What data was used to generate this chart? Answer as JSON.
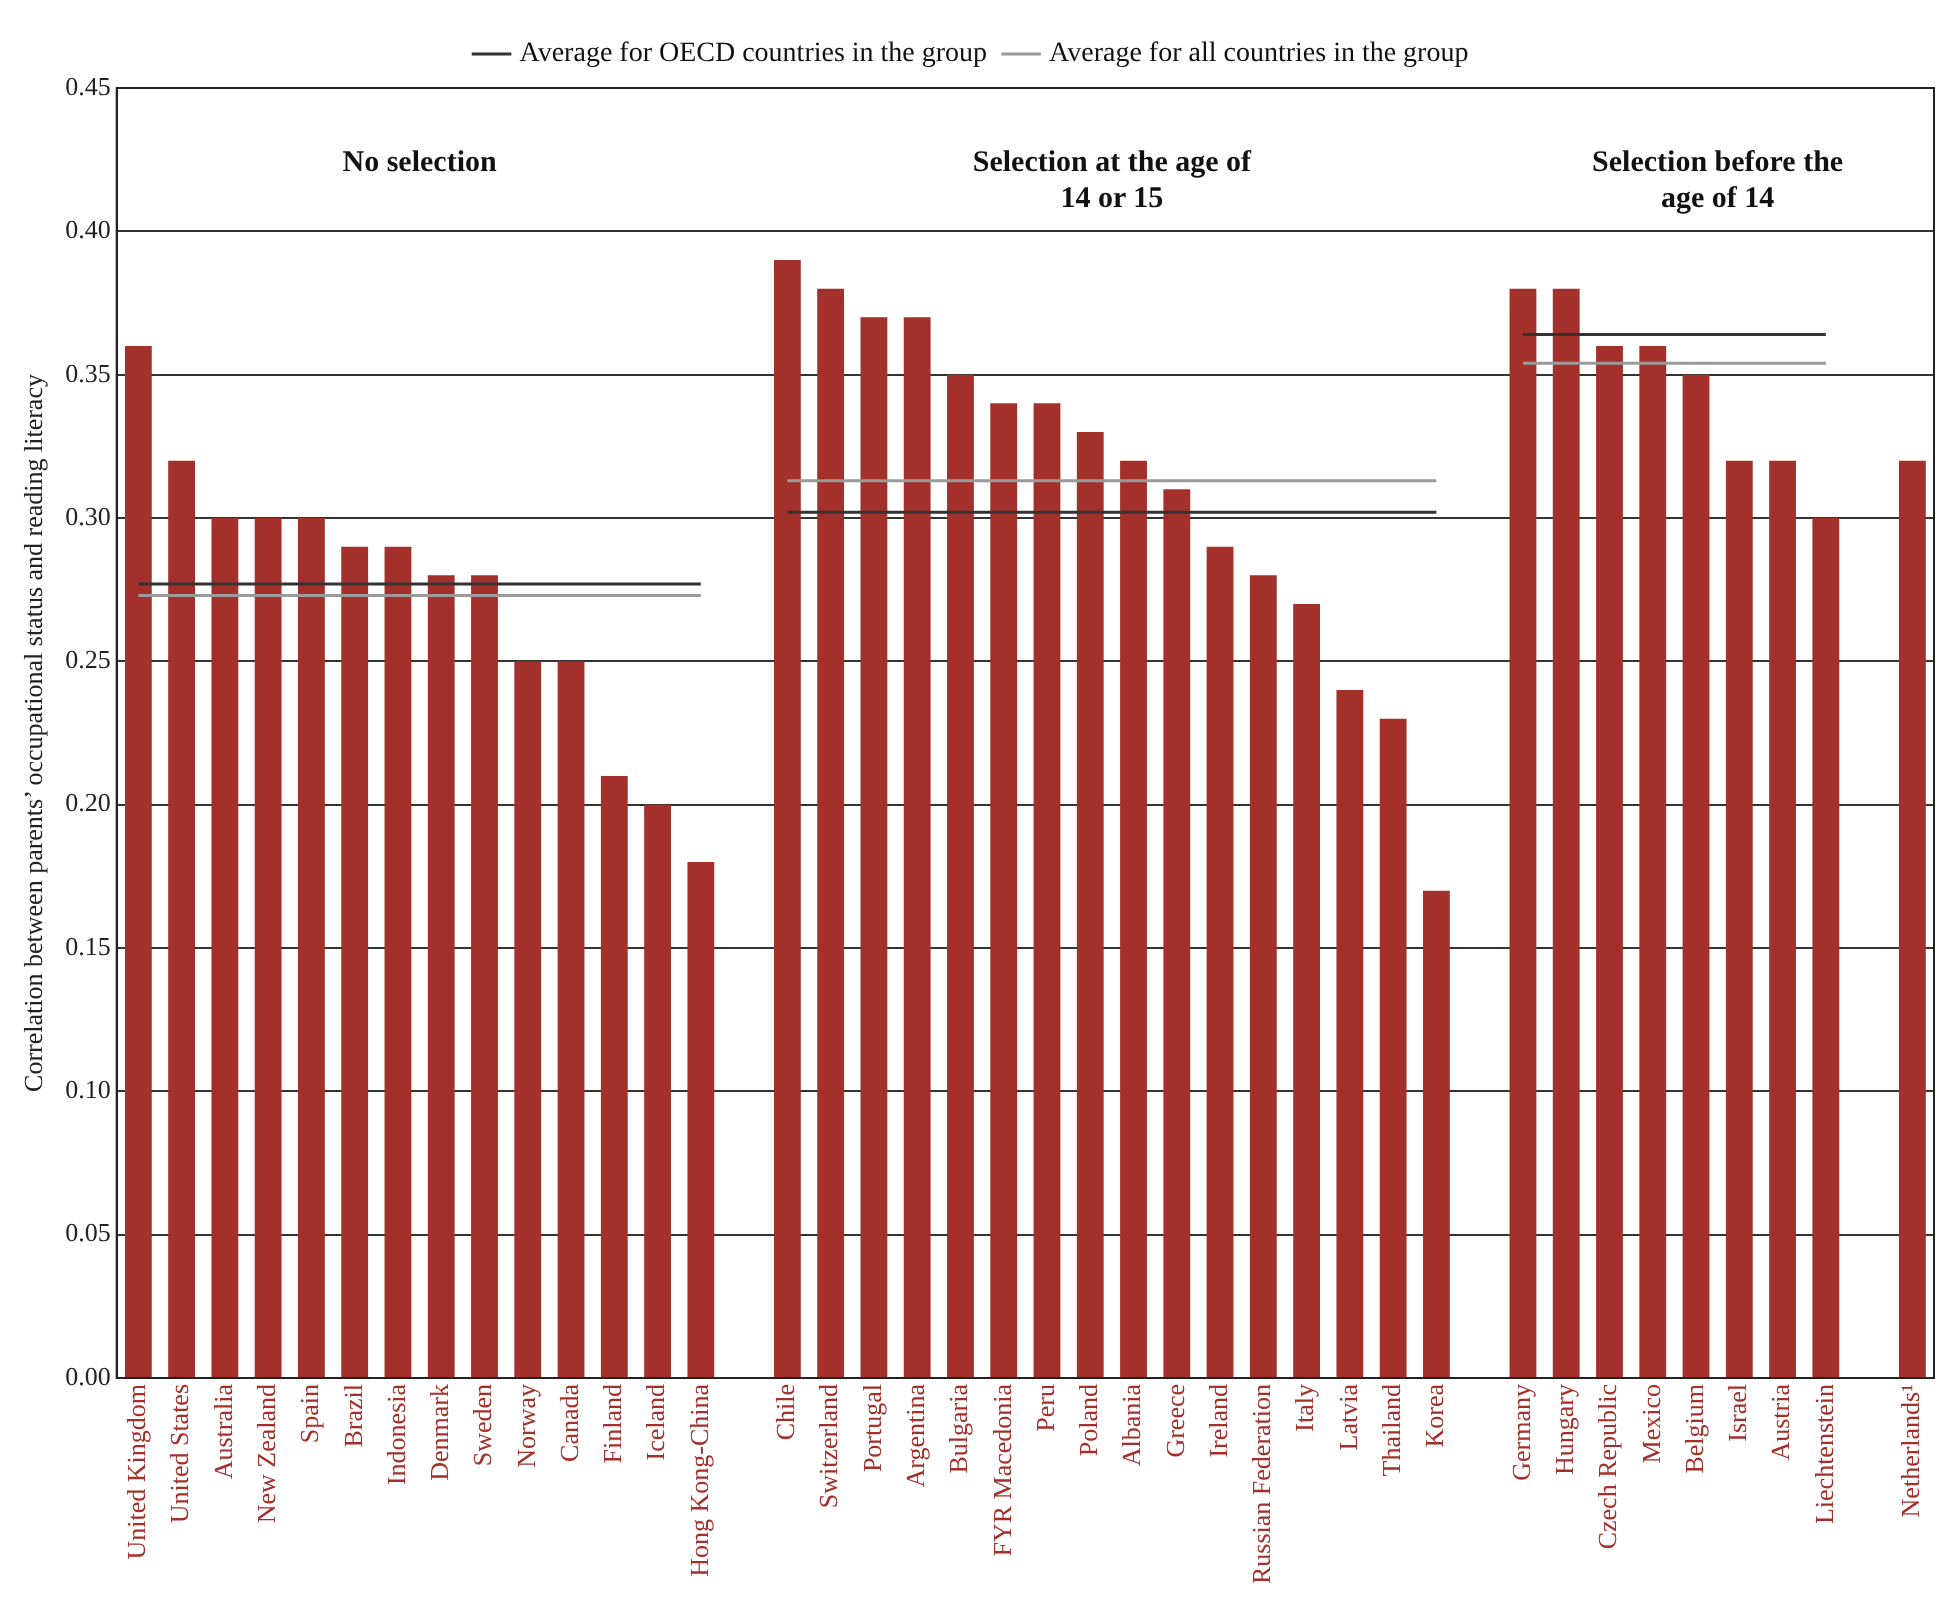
{
  "chart_data": {
    "type": "bar",
    "ylabel": "Correlation between parents’ occupational status and reading literacy",
    "categories": [
      "United Kingdom",
      "United States",
      "Australia",
      "New Zealand",
      "Spain",
      "Brazil",
      "Indonesia",
      "Denmark",
      "Sweden",
      "Norway",
      "Canada",
      "Finland",
      "Iceland",
      "Hong Kong-China",
      null,
      "Chile",
      "Switzerland",
      "Portugal",
      "Argentina",
      "Bulgaria",
      "FYR Macedonia",
      "Peru",
      "Poland",
      "Albania",
      "Greece",
      "Ireland",
      "Russian Federation",
      "Italy",
      "Latvia",
      "Thailand",
      "Korea",
      null,
      "Germany",
      "Hungary",
      "Czech Republic",
      "Mexico",
      "Belgium",
      "Israel",
      "Austria",
      "Liechtenstein",
      null,
      "Netherlands¹"
    ],
    "series": [
      {
        "color": "#a3302a",
        "values": [
          0.36,
          0.32,
          0.3,
          0.3,
          0.3,
          0.29,
          0.29,
          0.28,
          0.28,
          0.25,
          0.25,
          0.21,
          0.2,
          0.18,
          null,
          0.39,
          0.38,
          0.37,
          0.37,
          0.35,
          0.34,
          0.34,
          0.33,
          0.32,
          0.31,
          0.29,
          0.28,
          0.27,
          0.24,
          0.23,
          0.17,
          null,
          0.38,
          0.38,
          0.36,
          0.36,
          0.35,
          0.32,
          0.32,
          0.3,
          null,
          0.32
        ]
      },
      {
        "type": "line",
        "name": "Average for OECD countries in the group",
        "color": "#333333",
        "values": [
          0.277,
          0.277,
          0.277,
          0.277,
          0.277,
          0.277,
          0.277,
          0.277,
          0.277,
          0.277,
          0.277,
          0.277,
          0.277,
          0.277,
          null,
          0.302,
          0.302,
          0.302,
          0.302,
          0.302,
          0.302,
          0.302,
          0.302,
          0.302,
          0.302,
          0.302,
          0.302,
          0.302,
          0.302,
          0.302,
          0.302,
          null,
          0.364,
          0.364,
          0.364,
          0.364,
          0.364,
          0.364,
          0.364,
          0.364,
          null,
          null
        ]
      },
      {
        "type": "line",
        "name": "Average for all countries in the group",
        "color": "#9a9a9a",
        "values": [
          0.273,
          0.273,
          0.273,
          0.273,
          0.273,
          0.273,
          0.273,
          0.273,
          0.273,
          0.273,
          0.273,
          0.273,
          0.273,
          0.273,
          null,
          0.313,
          0.313,
          0.313,
          0.313,
          0.313,
          0.313,
          0.313,
          0.313,
          0.313,
          0.313,
          0.313,
          0.313,
          0.313,
          0.313,
          0.313,
          0.313,
          null,
          0.354,
          0.354,
          0.354,
          0.354,
          0.354,
          0.354,
          0.354,
          0.354,
          null,
          null
        ]
      }
    ],
    "ylim": [
      0,
      0.45
    ],
    "yticks": [
      {
        "value": 0,
        "label": "0.00"
      },
      {
        "value": 0.05,
        "label": "0.05"
      },
      {
        "value": 0.1,
        "label": "0.10"
      },
      {
        "value": 0.15,
        "label": "0.15"
      },
      {
        "value": 0.2,
        "label": "0.20"
      },
      {
        "value": 0.25,
        "label": "0.25"
      },
      {
        "value": 0.3,
        "label": "0.30"
      },
      {
        "value": 0.35,
        "label": "0.35"
      },
      {
        "value": 0.4,
        "label": "0.40"
      },
      {
        "value": 0.45,
        "label": "0.45"
      }
    ],
    "grid": "y",
    "legend": "top",
    "marker": "none",
    "line_style": "solid",
    "annotations": [
      "No selection",
      "Selection at the age of 14 or 15",
      "Selection before the age of 14"
    ]
  }
}
